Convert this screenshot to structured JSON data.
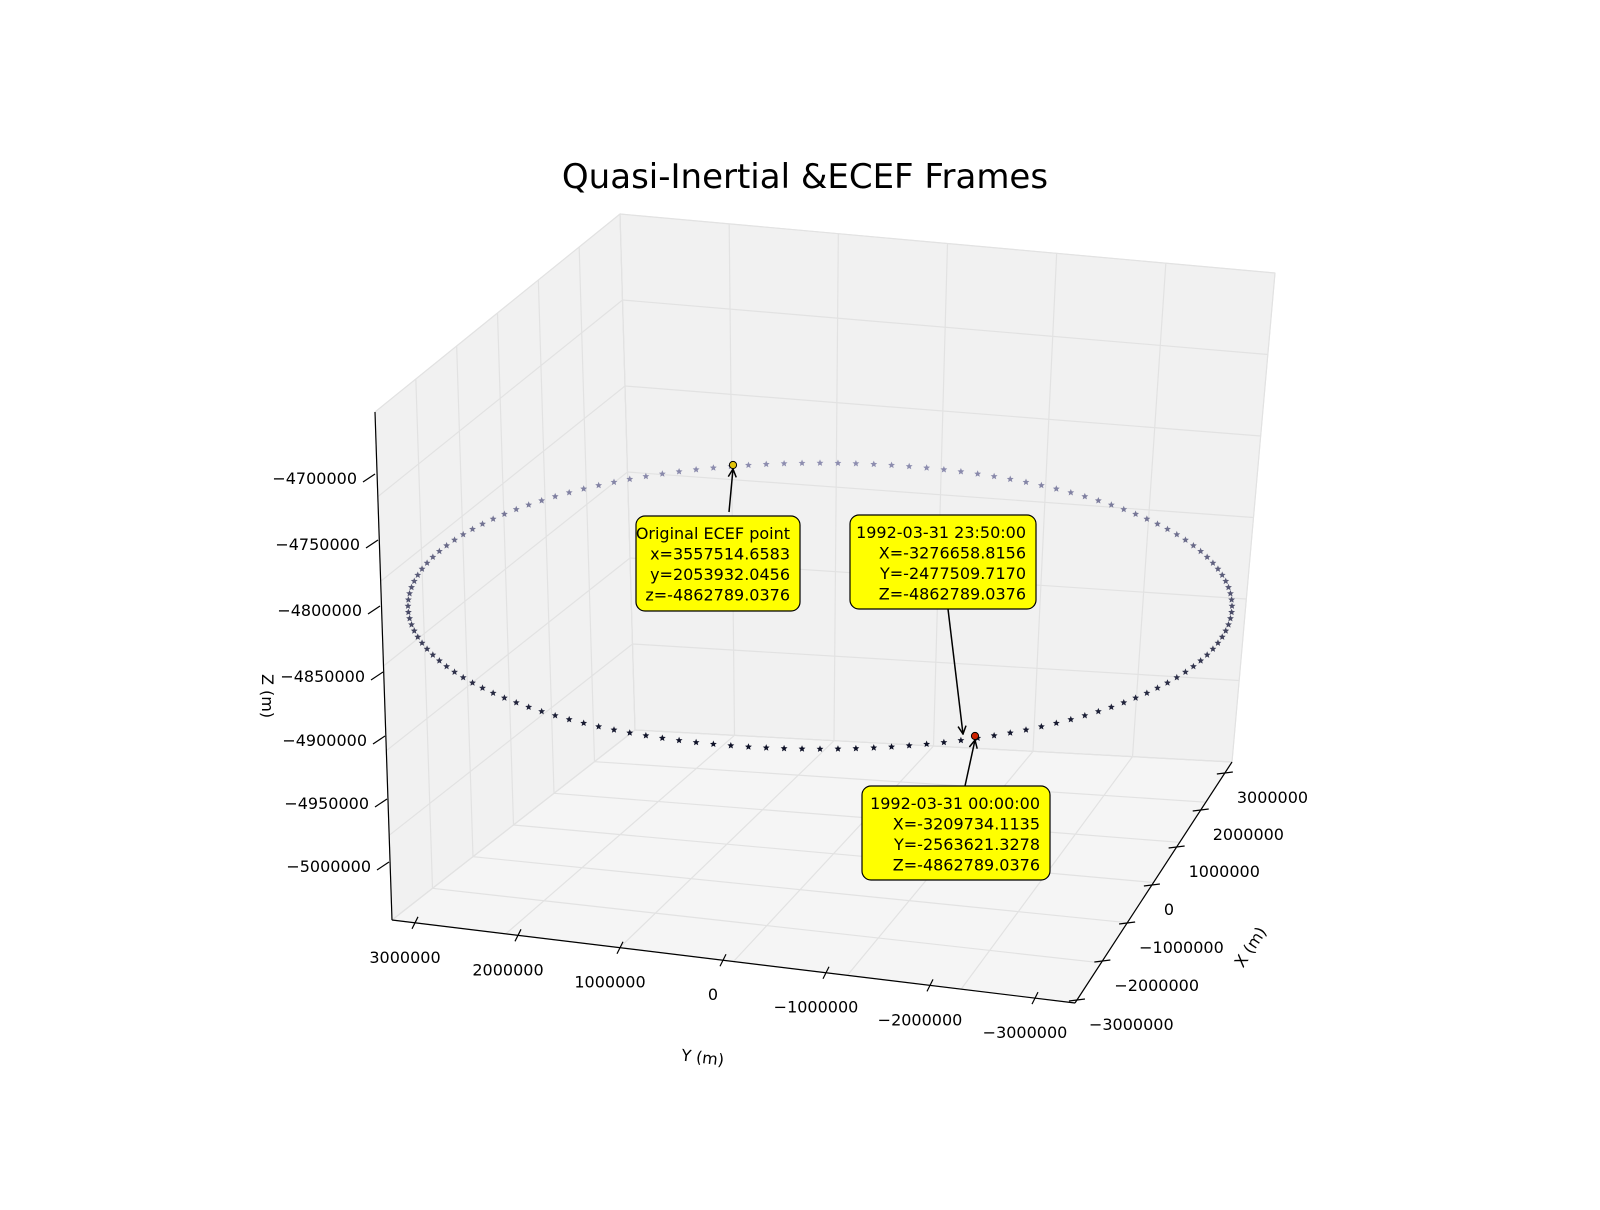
{
  "chart_data": {
    "type": "scatter3d",
    "title": "Quasi-Inertial &ECEF Frames",
    "xlabel": "X (m)",
    "ylabel": "Y (m)",
    "zlabel": "Z (m)",
    "xlim": [
      -3000000,
      3000000
    ],
    "ylim": [
      -3000000,
      3000000
    ],
    "zlim": [
      -5000000,
      -4700000
    ],
    "x_ticks": [
      "−3000000",
      "−2000000",
      "−1000000",
      "0",
      "1000000",
      "2000000",
      "3000000"
    ],
    "y_ticks": [
      "3000000",
      "2000000",
      "1000000",
      "0",
      "−1000000",
      "−2000000",
      "−3000000"
    ],
    "z_ticks": [
      "−4700000",
      "−4750000",
      "−4800000",
      "−4850000",
      "−4900000",
      "−4950000",
      "−5000000"
    ],
    "grid": true,
    "series": [
      {
        "marker": "star",
        "color_scale": [
          "#0d1026",
          "#8e8eb0"
        ],
        "z": -4862789.0376,
        "radius": 4104946,
        "count": 144
      }
    ],
    "points": [
      {
        "marker": "circle",
        "color": "#e0c20a",
        "x": 3557514.6583,
        "y": 2053932.0456,
        "z": -4862789.0376
      },
      {
        "marker": "circle",
        "color": "#cc2200",
        "x": -3209734.1135,
        "y": -2563621.3278,
        "z": -4862789.0376
      }
    ],
    "annotations": [
      {
        "lines": [
          "Original ECEF point",
          "x=3557514.6583",
          "y=2053932.0456",
          "z=-4862789.0376"
        ]
      },
      {
        "lines": [
          "1992-03-31 23:50:00",
          "X=-3276658.8156",
          "Y=-2477509.7170",
          "Z=-4862789.0376"
        ]
      },
      {
        "lines": [
          "1992-03-31 00:00:00",
          "X=-3209734.1135",
          "Y=-2563621.3278",
          "Z=-4862789.0376"
        ]
      }
    ]
  }
}
